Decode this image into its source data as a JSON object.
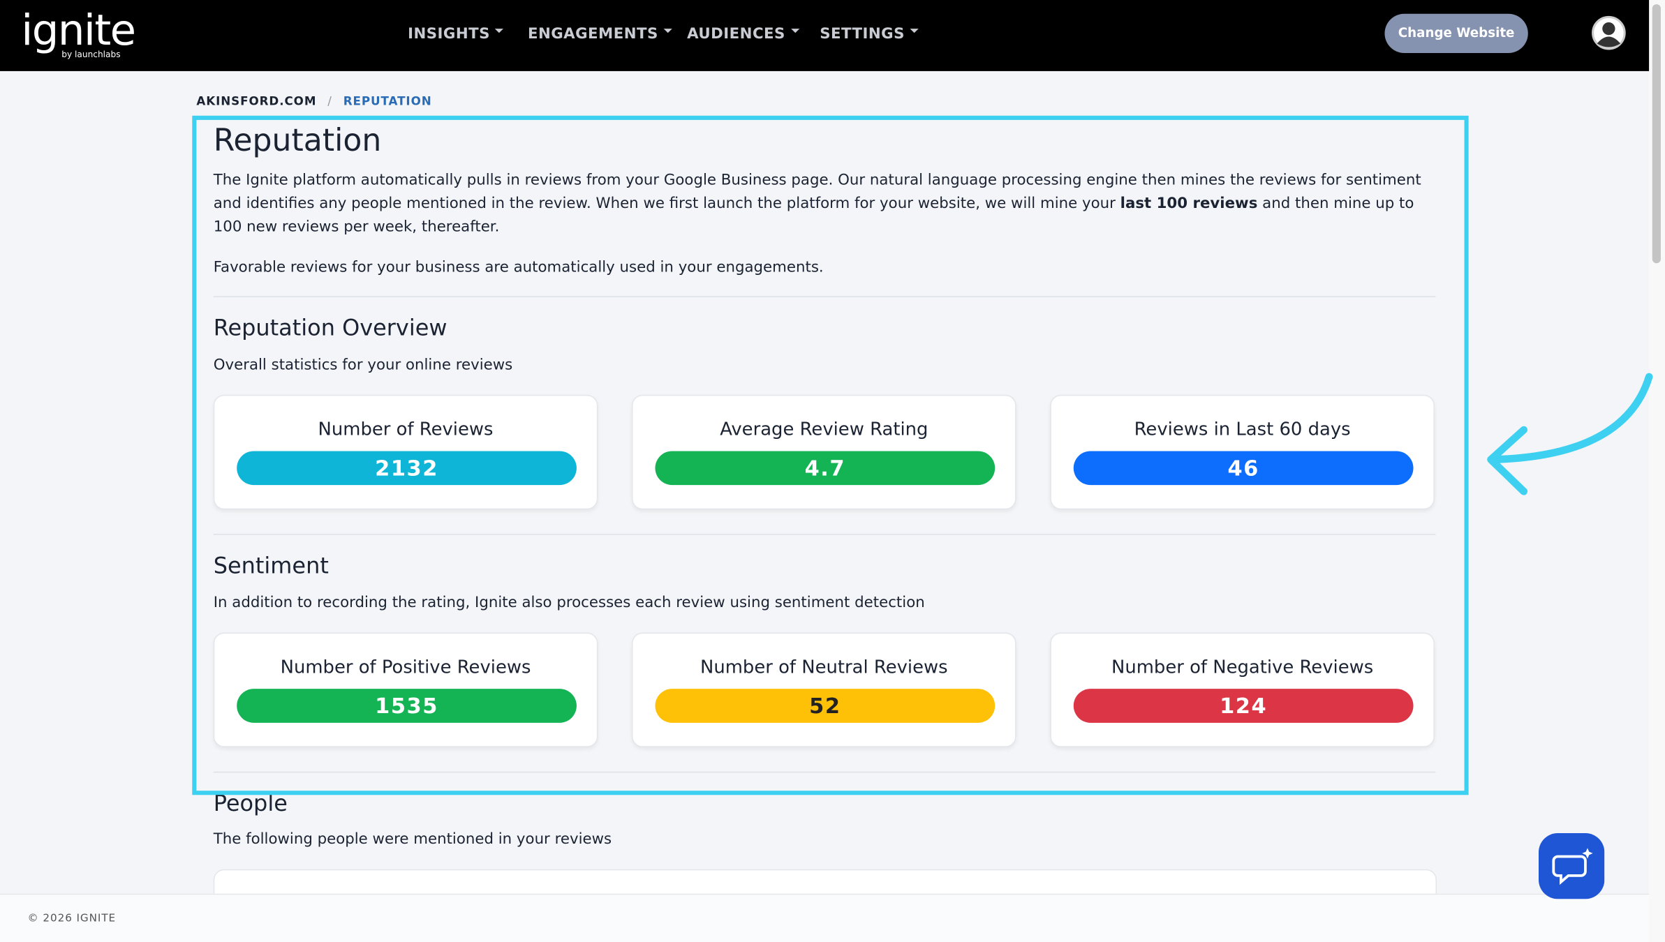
{
  "nav": {
    "logo": "ignite",
    "logo_sub": "by launchlabs",
    "menu": [
      "INSIGHTS",
      "ENGAGEMENTS",
      "AUDIENCES",
      "SETTINGS"
    ],
    "button": "Change Website"
  },
  "breadcrumb": {
    "items": [
      "AKINSFORD.COM",
      "REPUTATION"
    ],
    "separator": "/"
  },
  "page": {
    "title": "Reputation",
    "intro_before": "The Ignite platform automatically pulls in reviews from your Google Business page. Our natural language processing engine then mines the reviews for sentiment and identifies any people mentioned in the review. When we first launch the platform for your website, we will mine your ",
    "intro_bold": "last 100 reviews",
    "intro_after": " and then mine up to 100 new reviews per week, thereafter.",
    "intro2": "Favorable reviews for your business are automatically used in your engagements."
  },
  "overview": {
    "title": "Reputation Overview",
    "subtitle": "Overall statistics for your online reviews",
    "cards": [
      {
        "label": "Number of Reviews",
        "value": 2132,
        "color": "#0fb5d6"
      },
      {
        "label": "Average Review Rating",
        "value": 4.7,
        "color": "#14b454"
      },
      {
        "label": "Reviews in Last 60 days",
        "value": 46,
        "color": "#0d6efd"
      }
    ]
  },
  "sentiment": {
    "title": "Sentiment",
    "subtitle": "In addition to recording the rating, Ignite also processes each review using sentiment detection",
    "cards": [
      {
        "label": "Number of Positive Reviews",
        "value": 1535,
        "color": "#14b454"
      },
      {
        "label": "Number of Neutral Reviews",
        "value": 52,
        "color": "#ffc107"
      },
      {
        "label": "Number of Negative Reviews",
        "value": 124,
        "color": "#dc3545"
      }
    ]
  },
  "people": {
    "title": "People",
    "subtitle": "The following people were mentioned in your reviews"
  },
  "footer": {
    "text": "© 2026 IGNITE"
  }
}
